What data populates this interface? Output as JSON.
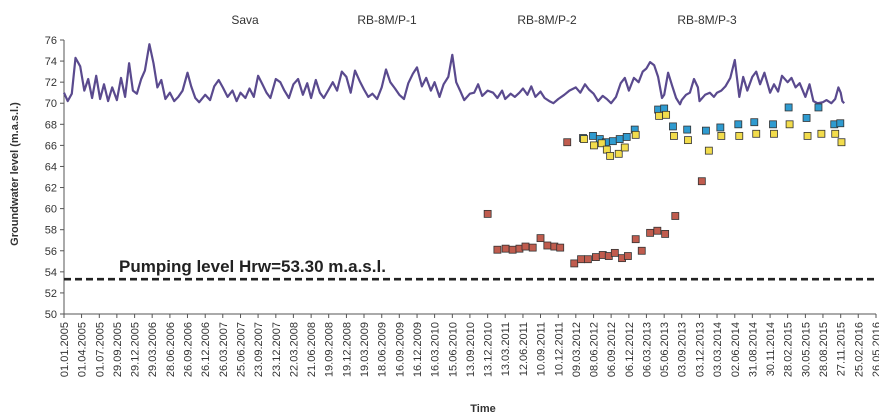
{
  "chart_data": {
    "type": "scatter",
    "title": "",
    "xlabel": "Time",
    "ylabel": "Groundwater level (m.a.s.l.)",
    "ylim": [
      50,
      76
    ],
    "yticks": [
      50,
      52,
      54,
      56,
      58,
      60,
      62,
      64,
      66,
      68,
      70,
      72,
      74,
      76
    ],
    "xlim": [
      "2005-01-01",
      "2016-05-26"
    ],
    "xtick_labels": [
      "01.01.2005",
      "01.04.2005",
      "01.07.2005",
      "29.09.2005",
      "29.12.2005",
      "29.03.2006",
      "28.06.2006",
      "26.09.2006",
      "26.12.2006",
      "26.03.2007",
      "25.06.2007",
      "23.09.2007",
      "23.12.2007",
      "22.03.2008",
      "21.06.2008",
      "19.09.2008",
      "19.12.2008",
      "19.03.2009",
      "18.06.2009",
      "16.09.2009",
      "16.12.2009",
      "16.03.2010",
      "15.06.2010",
      "13.09.2010",
      "13.12.2010",
      "13.03.2011",
      "12.06.2011",
      "10.09.2011",
      "10.12.2011",
      "09.03.2012",
      "08.06.2012",
      "06.09.2012",
      "06.12.2012",
      "06.03.2013",
      "05.06.2013",
      "03.09.2013",
      "03.12.2013",
      "03.03.2014",
      "02.06.2014",
      "31.08.2014",
      "30.11.2014",
      "28.02.2015",
      "30.05.2015",
      "28.08.2015",
      "27.11.2015",
      "25.02.2016",
      "26.05.2016"
    ],
    "grid": false,
    "legend": "none",
    "series_labels": [
      "Sava",
      "RB-8M/P-1",
      "RB-8M/P-2",
      "RB-8M/P-3"
    ],
    "annotation": {
      "text": "Pumping level Hrw=53.30 m.a.s.l.",
      "y": 53.3
    },
    "sava_line": {
      "color": "#5a4a8e",
      "points": [
        [
          "2005-01-01",
          71.0
        ],
        [
          "2005-01-20",
          70.2
        ],
        [
          "2005-02-10",
          70.9
        ],
        [
          "2005-03-01",
          74.3
        ],
        [
          "2005-03-25",
          73.5
        ],
        [
          "2005-04-15",
          71.2
        ],
        [
          "2005-05-05",
          72.3
        ],
        [
          "2005-05-25",
          70.5
        ],
        [
          "2005-06-15",
          72.6
        ],
        [
          "2005-07-05",
          70.4
        ],
        [
          "2005-07-25",
          71.8
        ],
        [
          "2005-08-15",
          70.2
        ],
        [
          "2005-09-05",
          71.5
        ],
        [
          "2005-09-29",
          70.3
        ],
        [
          "2005-10-20",
          72.4
        ],
        [
          "2005-11-10",
          70.6
        ],
        [
          "2005-12-01",
          73.8
        ],
        [
          "2005-12-20",
          71.2
        ],
        [
          "2006-01-10",
          70.9
        ],
        [
          "2006-02-01",
          72.3
        ],
        [
          "2006-02-20",
          73.1
        ],
        [
          "2006-03-15",
          75.6
        ],
        [
          "2006-04-05",
          73.8
        ],
        [
          "2006-04-25",
          71.5
        ],
        [
          "2006-05-15",
          72.2
        ],
        [
          "2006-06-05",
          70.4
        ],
        [
          "2006-06-28",
          71.0
        ],
        [
          "2006-07-20",
          70.2
        ],
        [
          "2006-08-10",
          70.6
        ],
        [
          "2006-09-01",
          71.2
        ],
        [
          "2006-09-26",
          72.9
        ],
        [
          "2006-10-15",
          71.6
        ],
        [
          "2006-11-05",
          70.5
        ],
        [
          "2006-11-25",
          70.1
        ],
        [
          "2006-12-26",
          70.8
        ],
        [
          "2007-01-20",
          70.3
        ],
        [
          "2007-02-10",
          71.6
        ],
        [
          "2007-03-05",
          72.2
        ],
        [
          "2007-03-26",
          71.5
        ],
        [
          "2007-04-20",
          70.6
        ],
        [
          "2007-05-15",
          71.2
        ],
        [
          "2007-06-05",
          70.2
        ],
        [
          "2007-06-25",
          71.0
        ],
        [
          "2007-07-20",
          70.5
        ],
        [
          "2007-08-10",
          71.4
        ],
        [
          "2007-09-01",
          70.6
        ],
        [
          "2007-09-23",
          72.6
        ],
        [
          "2007-10-15",
          71.8
        ],
        [
          "2007-11-05",
          71.0
        ],
        [
          "2007-11-25",
          70.5
        ],
        [
          "2007-12-23",
          72.3
        ],
        [
          "2008-01-15",
          72.0
        ],
        [
          "2008-02-05",
          71.2
        ],
        [
          "2008-02-28",
          70.5
        ],
        [
          "2008-03-22",
          71.8
        ],
        [
          "2008-04-15",
          72.3
        ],
        [
          "2008-05-10",
          70.8
        ],
        [
          "2008-06-01",
          71.9
        ],
        [
          "2008-06-21",
          70.5
        ],
        [
          "2008-07-15",
          72.2
        ],
        [
          "2008-08-05",
          71.0
        ],
        [
          "2008-08-25",
          70.5
        ],
        [
          "2008-09-19",
          71.3
        ],
        [
          "2008-10-10",
          72.0
        ],
        [
          "2008-11-01",
          71.2
        ],
        [
          "2008-11-25",
          73.0
        ],
        [
          "2008-12-19",
          72.5
        ],
        [
          "2009-01-10",
          71.0
        ],
        [
          "2009-02-01",
          73.1
        ],
        [
          "2009-02-25",
          72.1
        ],
        [
          "2009-03-19",
          71.3
        ],
        [
          "2009-04-10",
          70.6
        ],
        [
          "2009-05-01",
          70.9
        ],
        [
          "2009-05-25",
          70.4
        ],
        [
          "2009-06-18",
          71.5
        ],
        [
          "2009-07-10",
          73.2
        ],
        [
          "2009-08-01",
          72.0
        ],
        [
          "2009-08-25",
          71.4
        ],
        [
          "2009-09-16",
          70.8
        ],
        [
          "2009-10-10",
          70.4
        ],
        [
          "2009-11-01",
          71.9
        ],
        [
          "2009-11-25",
          72.8
        ],
        [
          "2009-12-16",
          73.4
        ],
        [
          "2010-01-10",
          71.6
        ],
        [
          "2010-02-01",
          72.4
        ],
        [
          "2010-02-25",
          71.2
        ],
        [
          "2010-03-16",
          72.0
        ],
        [
          "2010-04-10",
          70.6
        ],
        [
          "2010-05-01",
          71.8
        ],
        [
          "2010-05-25",
          72.5
        ],
        [
          "2010-06-15",
          74.6
        ],
        [
          "2010-07-05",
          72.0
        ],
        [
          "2010-07-25",
          71.2
        ],
        [
          "2010-08-15",
          70.3
        ],
        [
          "2010-09-13",
          70.9
        ],
        [
          "2010-10-05",
          71.0
        ],
        [
          "2010-10-25",
          71.8
        ],
        [
          "2010-11-15",
          70.7
        ],
        [
          "2010-12-13",
          71.2
        ],
        [
          "2011-01-10",
          71.0
        ],
        [
          "2011-02-01",
          70.5
        ],
        [
          "2011-02-25",
          71.2
        ],
        [
          "2011-03-13",
          70.4
        ],
        [
          "2011-04-10",
          70.9
        ],
        [
          "2011-05-01",
          70.6
        ],
        [
          "2011-05-25",
          71.0
        ],
        [
          "2011-06-12",
          71.4
        ],
        [
          "2011-07-05",
          70.8
        ],
        [
          "2011-07-25",
          71.6
        ],
        [
          "2011-08-15",
          70.6
        ],
        [
          "2011-09-10",
          71.1
        ],
        [
          "2011-10-01",
          70.5
        ],
        [
          "2011-10-25",
          70.2
        ],
        [
          "2011-11-15",
          70.0
        ],
        [
          "2011-12-10",
          70.4
        ],
        [
          "2012-01-10",
          70.8
        ],
        [
          "2012-02-05",
          71.2
        ],
        [
          "2012-03-09",
          71.5
        ],
        [
          "2012-04-01",
          71.0
        ],
        [
          "2012-04-25",
          71.8
        ],
        [
          "2012-05-15",
          71.3
        ],
        [
          "2012-06-08",
          70.9
        ],
        [
          "2012-07-01",
          70.2
        ],
        [
          "2012-07-25",
          70.7
        ],
        [
          "2012-08-15",
          70.4
        ],
        [
          "2012-09-06",
          70.0
        ],
        [
          "2012-10-01",
          70.6
        ],
        [
          "2012-10-25",
          71.9
        ],
        [
          "2012-11-15",
          72.4
        ],
        [
          "2012-12-06",
          71.2
        ],
        [
          "2013-01-01",
          72.4
        ],
        [
          "2013-01-25",
          72.0
        ],
        [
          "2013-02-15",
          73.0
        ],
        [
          "2013-03-06",
          73.3
        ],
        [
          "2013-03-25",
          73.9
        ],
        [
          "2013-04-15",
          73.6
        ],
        [
          "2013-05-05",
          72.5
        ],
        [
          "2013-05-25",
          70.5
        ],
        [
          "2013-06-05",
          70.8
        ],
        [
          "2013-06-25",
          72.9
        ],
        [
          "2013-07-15",
          71.7
        ],
        [
          "2013-08-05",
          70.5
        ],
        [
          "2013-08-25",
          69.9
        ],
        [
          "2013-09-03",
          70.3
        ],
        [
          "2013-09-25",
          70.8
        ],
        [
          "2013-10-15",
          71.0
        ],
        [
          "2013-11-05",
          72.3
        ],
        [
          "2013-11-25",
          71.5
        ],
        [
          "2013-12-03",
          70.2
        ],
        [
          "2014-01-01",
          70.8
        ],
        [
          "2014-01-25",
          71.0
        ],
        [
          "2014-02-15",
          70.6
        ],
        [
          "2014-03-03",
          71.0
        ],
        [
          "2014-03-25",
          71.2
        ],
        [
          "2014-04-15",
          71.6
        ],
        [
          "2014-05-10",
          72.4
        ],
        [
          "2014-06-02",
          74.1
        ],
        [
          "2014-06-25",
          70.6
        ],
        [
          "2014-07-15",
          72.5
        ],
        [
          "2014-08-05",
          71.2
        ],
        [
          "2014-08-31",
          72.5
        ],
        [
          "2014-09-20",
          73.0
        ],
        [
          "2014-10-10",
          71.8
        ],
        [
          "2014-11-01",
          72.9
        ],
        [
          "2014-11-30",
          71.0
        ],
        [
          "2014-12-20",
          71.8
        ],
        [
          "2015-01-10",
          71.1
        ],
        [
          "2015-01-30",
          72.6
        ],
        [
          "2015-02-28",
          72.0
        ],
        [
          "2015-03-20",
          72.4
        ],
        [
          "2015-04-10",
          71.5
        ],
        [
          "2015-05-01",
          71.9
        ],
        [
          "2015-05-30",
          70.6
        ],
        [
          "2015-06-20",
          71.8
        ],
        [
          "2015-07-10",
          70.2
        ],
        [
          "2015-08-01",
          70.0
        ],
        [
          "2015-08-28",
          70.1
        ],
        [
          "2015-09-15",
          70.3
        ],
        [
          "2015-10-10",
          70.0
        ],
        [
          "2015-10-30",
          70.4
        ],
        [
          "2015-11-15",
          71.5
        ],
        [
          "2015-11-27",
          71.0
        ],
        [
          "2015-12-05",
          70.2
        ],
        [
          "2015-12-15",
          70.0
        ]
      ]
    },
    "markers": [
      {
        "color": "#2f9bd0",
        "points": [
          [
            "2012-04-15",
            66.7
          ],
          [
            "2012-06-05",
            66.9
          ],
          [
            "2012-07-10",
            66.6
          ],
          [
            "2012-08-10",
            66.3
          ],
          [
            "2012-09-15",
            66.4
          ],
          [
            "2012-10-20",
            66.6
          ],
          [
            "2012-11-25",
            66.8
          ],
          [
            "2013-01-05",
            67.5
          ],
          [
            "2013-05-05",
            69.4
          ],
          [
            "2013-06-05",
            69.5
          ],
          [
            "2013-07-20",
            67.8
          ],
          [
            "2013-10-01",
            67.5
          ],
          [
            "2014-01-05",
            67.4
          ],
          [
            "2014-03-20",
            67.7
          ],
          [
            "2014-06-20",
            68.0
          ],
          [
            "2014-09-10",
            68.2
          ],
          [
            "2014-12-15",
            68.0
          ],
          [
            "2015-03-05",
            69.6
          ],
          [
            "2015-06-05",
            68.6
          ],
          [
            "2015-08-05",
            69.6
          ],
          [
            "2015-10-25",
            68.0
          ],
          [
            "2015-11-25",
            68.1
          ]
        ]
      },
      {
        "color": "#f2dc4c",
        "points": [
          [
            "2012-04-20",
            66.6
          ],
          [
            "2012-06-10",
            66.0
          ],
          [
            "2012-07-20",
            66.2
          ],
          [
            "2012-08-15",
            65.6
          ],
          [
            "2012-09-01",
            65.0
          ],
          [
            "2012-10-15",
            65.2
          ],
          [
            "2012-11-15",
            65.8
          ],
          [
            "2013-01-10",
            67.0
          ],
          [
            "2013-05-10",
            68.8
          ],
          [
            "2013-06-15",
            68.9
          ],
          [
            "2013-07-25",
            66.9
          ],
          [
            "2013-10-05",
            66.5
          ],
          [
            "2014-01-20",
            65.5
          ],
          [
            "2014-03-25",
            66.9
          ],
          [
            "2014-06-25",
            66.9
          ],
          [
            "2014-09-20",
            67.1
          ],
          [
            "2014-12-20",
            67.1
          ],
          [
            "2015-03-10",
            68.0
          ],
          [
            "2015-06-10",
            66.9
          ],
          [
            "2015-08-20",
            67.1
          ],
          [
            "2015-10-30",
            67.1
          ],
          [
            "2015-12-01",
            66.3
          ]
        ]
      },
      {
        "color": "#c05c4e",
        "points": [
          [
            "2010-12-13",
            59.5
          ],
          [
            "2011-02-01",
            56.1
          ],
          [
            "2011-03-15",
            56.2
          ],
          [
            "2011-04-20",
            56.1
          ],
          [
            "2011-05-25",
            56.2
          ],
          [
            "2011-06-25",
            56.4
          ],
          [
            "2011-08-01",
            56.3
          ],
          [
            "2011-09-10",
            57.2
          ],
          [
            "2011-10-15",
            56.5
          ],
          [
            "2011-11-20",
            56.4
          ],
          [
            "2011-12-20",
            56.3
          ],
          [
            "2012-01-25",
            66.3
          ],
          [
            "2012-03-01",
            54.8
          ],
          [
            "2012-04-05",
            55.2
          ],
          [
            "2012-05-10",
            55.2
          ],
          [
            "2012-06-20",
            55.4
          ],
          [
            "2012-07-25",
            55.6
          ],
          [
            "2012-08-25",
            55.5
          ],
          [
            "2012-09-25",
            55.8
          ],
          [
            "2012-11-01",
            55.3
          ],
          [
            "2012-12-01",
            55.5
          ],
          [
            "2013-01-10",
            57.1
          ],
          [
            "2013-02-10",
            56.0
          ],
          [
            "2013-03-25",
            57.7
          ],
          [
            "2013-05-01",
            57.9
          ],
          [
            "2013-06-10",
            57.6
          ],
          [
            "2013-08-01",
            59.3
          ],
          [
            "2013-12-15",
            62.6
          ]
        ]
      }
    ]
  }
}
